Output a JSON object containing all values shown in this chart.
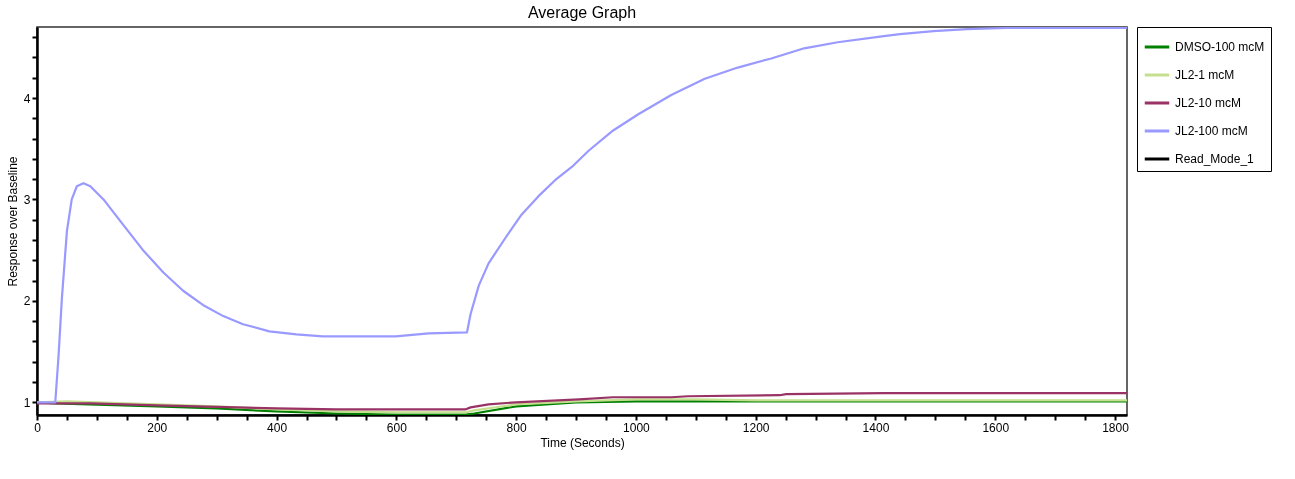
{
  "chart_data": {
    "type": "line",
    "title": "Average Graph",
    "xlabel": "Time (Seconds)",
    "ylabel": "Response over Baseline",
    "xlim": [
      0,
      1820
    ],
    "ylim": [
      0.875,
      4.7
    ],
    "xticks": [
      0,
      {
        "value": 50,
        "label": null
      },
      {
        "value": 100,
        "label": null
      },
      {
        "value": 150,
        "label": null
      },
      200,
      {
        "value": 250,
        "label": null
      },
      {
        "value": 300,
        "label": null
      },
      {
        "value": 350,
        "label": null
      },
      400,
      {
        "value": 450,
        "label": null
      },
      {
        "value": 500,
        "label": null
      },
      {
        "value": 550,
        "label": null
      },
      600,
      {
        "value": 650,
        "label": null
      },
      {
        "value": 700,
        "label": null
      },
      {
        "value": 750,
        "label": null
      },
      800,
      {
        "value": 850,
        "label": null
      },
      {
        "value": 900,
        "label": null
      },
      {
        "value": 950,
        "label": null
      },
      1000,
      {
        "value": 1050,
        "label": null
      },
      {
        "value": 1100,
        "label": null
      },
      {
        "value": 1150,
        "label": null
      },
      1200,
      {
        "value": 1250,
        "label": null
      },
      {
        "value": 1300,
        "label": null
      },
      {
        "value": 1350,
        "label": null
      },
      1400,
      {
        "value": 1450,
        "label": null
      },
      {
        "value": 1500,
        "label": null
      },
      {
        "value": 1550,
        "label": null
      },
      1600,
      {
        "value": 1650,
        "label": null
      },
      {
        "value": 1700,
        "label": null
      },
      {
        "value": 1750,
        "label": null
      },
      1800
    ],
    "yticks": [
      1,
      {
        "value": 1.2,
        "label": null
      },
      {
        "value": 1.4,
        "label": null
      },
      {
        "value": 1.6,
        "label": null
      },
      {
        "value": 1.8,
        "label": null
      },
      2,
      {
        "value": 2.2,
        "label": null
      },
      {
        "value": 2.4,
        "label": null
      },
      {
        "value": 2.6,
        "label": null
      },
      {
        "value": 2.8,
        "label": null
      },
      3,
      {
        "value": 3.2,
        "label": null
      },
      {
        "value": 3.4,
        "label": null
      },
      {
        "value": 3.6,
        "label": null
      },
      {
        "value": 3.8,
        "label": null
      },
      4,
      {
        "value": 4.2,
        "label": null
      },
      {
        "value": 4.4,
        "label": null
      },
      {
        "value": 4.6,
        "label": null
      }
    ],
    "legend": "top right",
    "series": [
      {
        "name": "DMSO-100 mcM",
        "color": "#008000",
        "x": [
          0,
          30,
          200,
          300,
          400,
          500,
          600,
          715,
          730,
          800,
          900,
          1000,
          1100,
          1200,
          1820
        ],
        "values": [
          1.0,
          0.99,
          0.96,
          0.94,
          0.91,
          0.89,
          0.88,
          0.88,
          0.89,
          0.96,
          1.0,
          1.01,
          1.01,
          1.01,
          1.01
        ]
      },
      {
        "name": "JL2-1 mcM",
        "color": "#c4df8e",
        "x": [
          0,
          50,
          200,
          300,
          400,
          500,
          600,
          715,
          730,
          800,
          900,
          1000,
          1100,
          1200,
          1820
        ],
        "values": [
          1.0,
          1.01,
          0.98,
          0.96,
          0.93,
          0.91,
          0.9,
          0.9,
          0.92,
          0.98,
          1.01,
          1.03,
          1.03,
          1.02,
          1.02
        ]
      },
      {
        "name": "JL2-10 mcM",
        "color": "#993366",
        "x": [
          0,
          89,
          200,
          400,
          500,
          715,
          724,
          754,
          800,
          905,
          962,
          1059,
          1087,
          1240,
          1251,
          1414,
          1820
        ],
        "values": [
          0.99,
          0.99,
          0.97,
          0.94,
          0.93,
          0.93,
          0.95,
          0.98,
          1.0,
          1.03,
          1.05,
          1.05,
          1.06,
          1.07,
          1.08,
          1.09,
          1.09
        ]
      },
      {
        "name": "JL2-100 mcM",
        "color": "#9999ff",
        "x": [
          0,
          30.5,
          36,
          41.6,
          50,
          58,
          66.5,
          77.6,
          89,
          111,
          144,
          177,
          211,
          244,
          277,
          311,
          344,
          388,
          433,
          477,
          532,
          599,
          654,
          718,
          724,
          737.6,
          754,
          782,
          809,
          837,
          865,
          893,
          921,
          962,
          1004,
          1059,
          1115,
          1170,
          1226,
          1281,
          1337,
          1414,
          1441,
          1497,
          1553,
          1620,
          1720,
          1820
        ],
        "values": [
          1.0,
          1.0,
          1.46,
          2.03,
          2.69,
          3.0,
          3.13,
          3.16,
          3.13,
          3.0,
          2.75,
          2.5,
          2.28,
          2.1,
          1.96,
          1.85,
          1.77,
          1.7,
          1.67,
          1.65,
          1.65,
          1.65,
          1.68,
          1.69,
          1.87,
          2.15,
          2.37,
          2.62,
          2.85,
          3.03,
          3.19,
          3.32,
          3.48,
          3.68,
          3.84,
          4.03,
          4.19,
          4.3,
          4.39,
          4.49,
          4.55,
          4.61,
          4.63,
          4.66,
          4.68,
          4.69,
          4.69,
          4.69
        ]
      },
      {
        "name": "Read_Mode_1",
        "color": "#000000"
      }
    ]
  }
}
